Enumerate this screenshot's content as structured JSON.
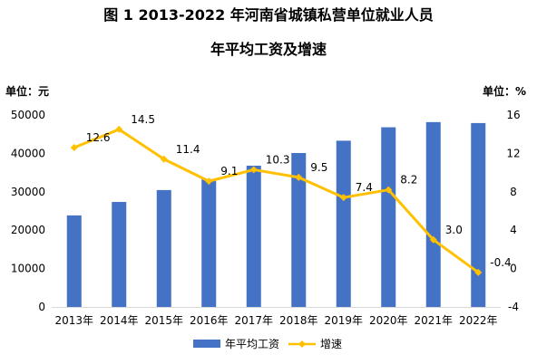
{
  "chart_data": {
    "type": "bar",
    "title_line1": "图 1 2013-2022 年河南省城镇私营单位就业人员",
    "title_line2": "年平均工资及增速",
    "left_unit": "单位：元",
    "right_unit": "单位：%",
    "categories": [
      "2013年",
      "2014年",
      "2015年",
      "2016年",
      "2017年",
      "2018年",
      "2019年",
      "2020年",
      "2021年",
      "2022年"
    ],
    "series": [
      {
        "name": "年平均工资",
        "type": "bar",
        "axis": "left",
        "color": "#4472C4",
        "values": [
          23850,
          27350,
          30450,
          33300,
          36800,
          40100,
          43300,
          46800,
          48150,
          47900
        ]
      },
      {
        "name": "增速",
        "type": "line",
        "axis": "right",
        "color": "#FFC000",
        "values": [
          12.6,
          14.5,
          11.4,
          9.1,
          10.3,
          9.5,
          7.4,
          8.2,
          3.0,
          -0.4
        ],
        "labels": [
          "12.6",
          "14.5",
          "11.4",
          "9.1",
          "10.3",
          "9.5",
          "7.4",
          "8.2",
          "3.0",
          "-0.4"
        ]
      }
    ],
    "left_axis": {
      "ylim": [
        0,
        50000
      ],
      "ticks": [
        "0",
        "10000",
        "20000",
        "30000",
        "40000",
        "50000"
      ]
    },
    "right_axis": {
      "ylim": [
        -4,
        16
      ],
      "ticks": [
        "-4",
        "0",
        "4",
        "8",
        "12",
        "16"
      ]
    },
    "grid": false,
    "legend_position": "bottom"
  }
}
